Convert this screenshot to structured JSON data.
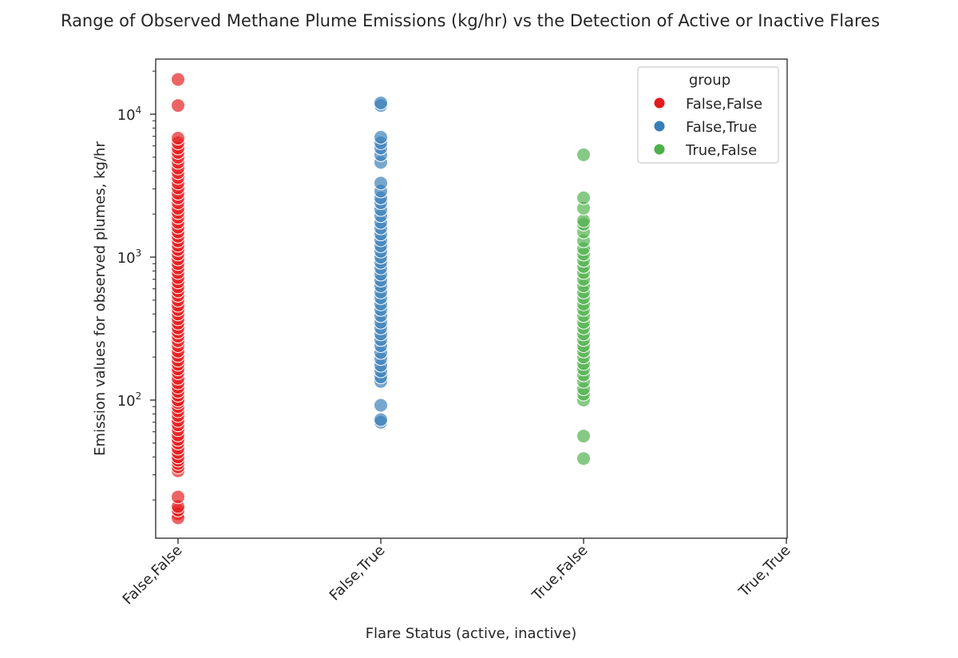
{
  "chart_data": {
    "type": "scatter",
    "title": "Range of Observed Methane Plume Emissions (kg/hr) vs the Detection of Active or Inactive Flares",
    "xlabel": "Flare Status (active, inactive)",
    "ylabel": "Emission values for observed plumes, kg/hr",
    "y_scale": "log",
    "ylim": [
      12,
      25000
    ],
    "y_ticks": [
      {
        "value": 100,
        "base": "10",
        "exp": "2"
      },
      {
        "value": 1000,
        "base": "10",
        "exp": "3"
      },
      {
        "value": 10000,
        "base": "10",
        "exp": "4"
      }
    ],
    "categories": [
      "False,False",
      "False,True",
      "True,False",
      "True,True"
    ],
    "grid": false,
    "legend": {
      "title": "group",
      "position": "top-right"
    },
    "series": [
      {
        "name": "False,False",
        "color": "#e41a1c",
        "category": "False,False",
        "values": [
          16,
          15,
          17,
          18,
          21,
          32,
          34,
          36,
          38,
          40,
          43,
          46,
          50,
          53,
          57,
          62,
          67,
          72,
          78,
          84,
          90,
          96,
          100,
          108,
          115,
          123,
          132,
          142,
          155,
          165,
          178,
          190,
          205,
          220,
          240,
          260,
          280,
          300,
          320,
          345,
          370,
          400,
          430,
          460,
          500,
          540,
          580,
          620,
          670,
          720,
          780,
          840,
          900,
          970,
          1050,
          1130,
          1210,
          1300,
          1400,
          1500,
          1620,
          1750,
          1900,
          2050,
          2200,
          2400,
          2600,
          2800,
          3050,
          3300,
          3600,
          3900,
          4200,
          4600,
          5000,
          5400,
          5800,
          6300,
          6800,
          11500,
          17500
        ]
      },
      {
        "name": "False,True",
        "color": "#377eb8",
        "category": "False,True",
        "values": [
          70,
          73,
          92,
          135,
          145,
          160,
          175,
          195,
          215,
          240,
          265,
          290,
          320,
          350,
          390,
          430,
          470,
          520,
          570,
          630,
          690,
          760,
          840,
          920,
          1000,
          1100,
          1200,
          1320,
          1450,
          1600,
          1750,
          1950,
          2150,
          2400,
          2600,
          2900,
          3300,
          4600,
          5200,
          5800,
          6300,
          6900,
          11500,
          12000
        ]
      },
      {
        "name": "True,False",
        "color": "#4daf4a",
        "category": "True,False",
        "values": [
          39,
          56,
          100,
          110,
          120,
          135,
          150,
          165,
          180,
          200,
          220,
          240,
          265,
          290,
          320,
          350,
          390,
          430,
          470,
          520,
          570,
          630,
          700,
          780,
          860,
          950,
          1050,
          1150,
          1300,
          1500,
          1700,
          1800,
          2200,
          2600,
          5200
        ]
      }
    ]
  }
}
